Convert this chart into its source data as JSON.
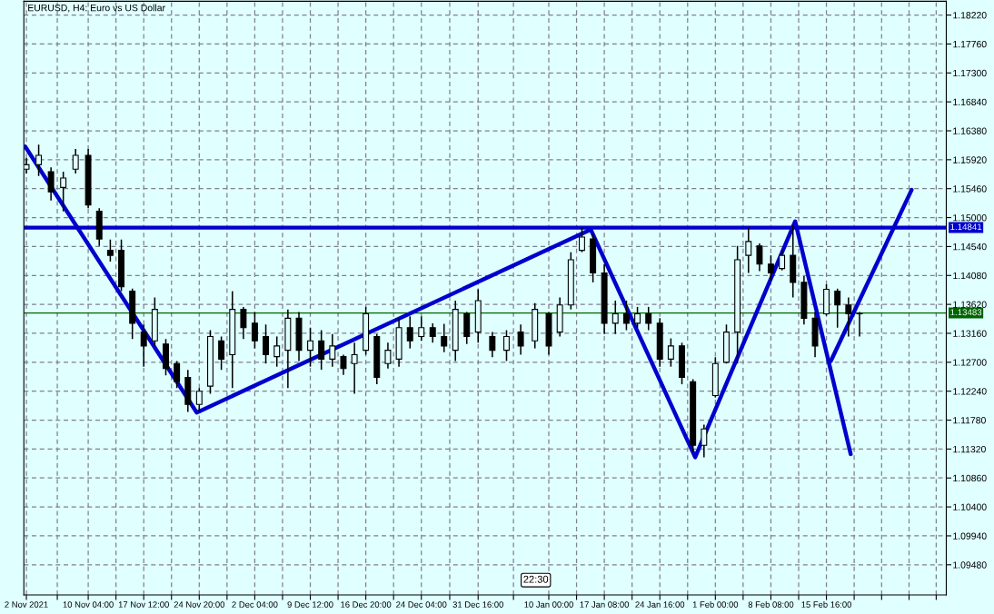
{
  "chart_data": {
    "type": "candlestick",
    "title": "EURUSD, H4: Euro vs US Dollar",
    "x": [
      "2021-11-02T00:00",
      "2021-11-03T15:00",
      "2021-11-05T06:00",
      "2021-11-06T21:00",
      "2021-11-08T12:00",
      "2021-11-10T04:00",
      "2021-11-11T15:00",
      "2021-11-13T02:00",
      "2021-11-14T13:00",
      "2021-11-16T00:00",
      "2021-11-17T12:00",
      "2021-11-18T23:00",
      "2021-11-20T10:00",
      "2021-11-21T21:00",
      "2021-11-23T08:00",
      "2021-11-24T20:00",
      "2021-11-26T07:00",
      "2021-11-27T18:00",
      "2021-11-29T05:00",
      "2021-11-30T16:00",
      "2021-12-02T04:00",
      "2021-12-03T15:00",
      "2021-12-05T02:00",
      "2021-12-06T13:00",
      "2021-12-08T00:00",
      "2021-12-09T12:00",
      "2021-12-10T23:00",
      "2021-12-12T10:00",
      "2021-12-13T21:00",
      "2021-12-15T08:00",
      "2021-12-16T20:00",
      "2021-12-18T07:00",
      "2021-12-19T18:00",
      "2021-12-21T05:00",
      "2021-12-22T16:00",
      "2021-12-24T04:00",
      "2021-12-25T16:00",
      "2021-12-27T04:00",
      "2021-12-28T16:00",
      "2021-12-30T04:00",
      "2021-12-31T16:00",
      "2022-01-02T13:00",
      "2022-01-04T10:00",
      "2022-01-06T07:00",
      "2022-01-08T04:00",
      "2022-01-10T00:00",
      "2022-01-11T11:00",
      "2022-01-12T22:00",
      "2022-01-14T09:00",
      "2022-01-15T20:00",
      "2022-01-17T08:00",
      "2022-01-18T19:00",
      "2022-01-20T06:00",
      "2022-01-21T17:00",
      "2022-01-23T04:00",
      "2022-01-24T16:00",
      "2022-01-26T03:00",
      "2022-01-27T14:00",
      "2022-01-29T01:00",
      "2022-01-30T12:00",
      "2022-02-01T00:00",
      "2022-02-02T11:00",
      "2022-02-03T22:00",
      "2022-02-05T09:00",
      "2022-02-06T20:00",
      "2022-02-08T08:00",
      "2022-02-09T19:00",
      "2022-02-11T06:00",
      "2022-02-12T17:00",
      "2022-02-14T04:00",
      "2022-02-15T16:00",
      "2022-02-17T03:00",
      "2022-02-18T14:00",
      "2022-02-20T01:00"
    ],
    "ohlc": [
      [
        1.1577,
        1.1595,
        1.157,
        1.1584
      ],
      [
        1.1584,
        1.1616,
        1.1566,
        1.1599
      ],
      [
        1.1573,
        1.158,
        1.1527,
        1.1541
      ],
      [
        1.1548,
        1.1573,
        1.151,
        1.1563
      ],
      [
        1.1577,
        1.1609,
        1.157,
        1.1599
      ],
      [
        1.1599,
        1.1609,
        1.1515,
        1.152
      ],
      [
        1.151,
        1.1515,
        1.1455,
        1.1466
      ],
      [
        1.1448,
        1.1465,
        1.143,
        1.144
      ],
      [
        1.1448,
        1.1465,
        1.1383,
        1.139
      ],
      [
        1.1383,
        1.1387,
        1.1307,
        1.1332
      ],
      [
        1.1318,
        1.133,
        1.1263,
        1.1296
      ],
      [
        1.1304,
        1.1373,
        1.1296,
        1.1354
      ],
      [
        1.1299,
        1.1307,
        1.1249,
        1.126
      ],
      [
        1.1268,
        1.1272,
        1.1229,
        1.1239
      ],
      [
        1.1246,
        1.1258,
        1.1191,
        1.1203
      ],
      [
        1.1203,
        1.1229,
        1.1191,
        1.1224
      ],
      [
        1.1232,
        1.1321,
        1.122,
        1.1311
      ],
      [
        1.1304,
        1.1311,
        1.1258,
        1.1275
      ],
      [
        1.1282,
        1.1383,
        1.1229,
        1.1354
      ],
      [
        1.1354,
        1.1358,
        1.1307,
        1.1325
      ],
      [
        1.1332,
        1.135,
        1.1292,
        1.1304
      ],
      [
        1.1311,
        1.133,
        1.1268,
        1.1282
      ],
      [
        1.1279,
        1.1311,
        1.1263,
        1.1296
      ],
      [
        1.1289,
        1.1354,
        1.1229,
        1.134
      ],
      [
        1.134,
        1.135,
        1.1272,
        1.1289
      ],
      [
        1.1289,
        1.1325,
        1.1263,
        1.1304
      ],
      [
        1.1304,
        1.1321,
        1.1258,
        1.1275
      ],
      [
        1.1275,
        1.1315,
        1.1263,
        1.1296
      ],
      [
        1.1279,
        1.1282,
        1.125,
        1.126
      ],
      [
        1.1268,
        1.1301,
        1.122,
        1.1282
      ],
      [
        1.1289,
        1.1358,
        1.1282,
        1.1347
      ],
      [
        1.1311,
        1.1315,
        1.1235,
        1.1246
      ],
      [
        1.1268,
        1.1301,
        1.126,
        1.1289
      ],
      [
        1.1275,
        1.134,
        1.1263,
        1.1325
      ],
      [
        1.1325,
        1.1343,
        1.1292,
        1.1304
      ],
      [
        1.1311,
        1.1343,
        1.1304,
        1.1325
      ],
      [
        1.1325,
        1.1332,
        1.1301,
        1.1311
      ],
      [
        1.1311,
        1.1331,
        1.1286,
        1.1296
      ],
      [
        1.1289,
        1.1368,
        1.1272,
        1.1354
      ],
      [
        1.1347,
        1.135,
        1.1299,
        1.1311
      ],
      [
        1.1318,
        1.1386,
        1.1301,
        1.1368
      ],
      [
        1.1311,
        1.1318,
        1.1278,
        1.1289
      ],
      [
        1.1289,
        1.1321,
        1.1272,
        1.1311
      ],
      [
        1.1318,
        1.133,
        1.1282,
        1.1296
      ],
      [
        1.1304,
        1.1364,
        1.1292,
        1.1354
      ],
      [
        1.1347,
        1.135,
        1.1282,
        1.1296
      ],
      [
        1.1318,
        1.1373,
        1.1311,
        1.1361
      ],
      [
        1.1361,
        1.1445,
        1.1354,
        1.1433
      ],
      [
        1.1448,
        1.1484,
        1.1445,
        1.1469
      ],
      [
        1.1466,
        1.1474,
        1.1397,
        1.1412
      ],
      [
        1.1412,
        1.1426,
        1.1315,
        1.1332
      ],
      [
        1.1332,
        1.1368,
        1.1315,
        1.1347
      ],
      [
        1.1347,
        1.1368,
        1.1321,
        1.1332
      ],
      [
        1.1332,
        1.1358,
        1.1325,
        1.1347
      ],
      [
        1.1347,
        1.1358,
        1.1321,
        1.1332
      ],
      [
        1.1332,
        1.134,
        1.1263,
        1.1275
      ],
      [
        1.1275,
        1.1308,
        1.1263,
        1.1296
      ],
      [
        1.1296,
        1.1301,
        1.1235,
        1.1246
      ],
      [
        1.1239,
        1.1243,
        1.1128,
        1.1138
      ],
      [
        1.1138,
        1.1171,
        1.1119,
        1.1164
      ],
      [
        1.1217,
        1.1278,
        1.1214,
        1.1268
      ],
      [
        1.127,
        1.133,
        1.1268,
        1.1318
      ],
      [
        1.1318,
        1.1455,
        1.1268,
        1.1433
      ],
      [
        1.144,
        1.1484,
        1.1412,
        1.1462
      ],
      [
        1.1455,
        1.1459,
        1.1415,
        1.1426
      ],
      [
        1.1426,
        1.144,
        1.14,
        1.1412
      ],
      [
        1.1419,
        1.1448,
        1.1416,
        1.144
      ],
      [
        1.144,
        1.1488,
        1.1373,
        1.1397
      ],
      [
        1.1397,
        1.1407,
        1.133,
        1.134
      ],
      [
        1.134,
        1.135,
        1.1278,
        1.1296
      ],
      [
        1.1347,
        1.1394,
        1.1344,
        1.1386
      ],
      [
        1.1383,
        1.1387,
        1.1325,
        1.1361
      ],
      [
        1.1361,
        1.1373,
        1.1311,
        1.1347
      ],
      [
        1.1347,
        1.135,
        1.1311,
        1.1348
      ]
    ],
    "color": "#000000",
    "series": [
      {
        "type": "line",
        "color": "#0000cd",
        "x": [
          "2021-11-01T20:00",
          "2021-11-24T12:00",
          "2022-01-15T13:00",
          "2022-01-29T08:00",
          "2022-02-11T13:00",
          "2022-02-18T21:00"
        ],
        "values": [
          1.1613,
          1.119,
          1.1481,
          1.1119,
          1.1494,
          1.1124
        ]
      },
      {
        "type": "line",
        "color": "#0000cd",
        "x": [
          "2022-02-16T06:00",
          "2022-02-26T22:00"
        ],
        "values": [
          1.1272,
          1.1544
        ]
      }
    ],
    "ref_lines": [
      {
        "axis": "y",
        "value": 1.14841,
        "label": "1.14841",
        "color": "#0000cd"
      },
      {
        "axis": "y",
        "value": 1.13483,
        "label": "1.13483",
        "color": "#006400"
      }
    ],
    "xlim": [
      "2021-11-01T16:00",
      "2022-03-03T12:00"
    ],
    "xticks": [
      {
        "value": "2021-11-02T00:00",
        "label": "2 Nov 2021"
      },
      {
        "value": "2021-11-06T02:00",
        "label": null
      },
      {
        "value": "2021-11-10T04:00",
        "label": "10 Nov 04:00"
      },
      {
        "value": "2021-11-13T20:00",
        "label": null
      },
      {
        "value": "2021-11-17T12:00",
        "label": "17 Nov 12:00"
      },
      {
        "value": "2021-11-21T04:00",
        "label": null
      },
      {
        "value": "2021-11-24T20:00",
        "label": "24 Nov 20:00"
      },
      {
        "value": "2021-11-28T12:00",
        "label": null
      },
      {
        "value": "2021-12-02T04:00",
        "label": "2 Dec 04:00"
      },
      {
        "value": "2021-12-05T20:00",
        "label": null
      },
      {
        "value": "2021-12-09T12:00",
        "label": "9 Dec 12:00"
      },
      {
        "value": "2021-12-13T04:00",
        "label": null
      },
      {
        "value": "2021-12-16T20:00",
        "label": "16 Dec 20:00"
      },
      {
        "value": "2021-12-20T12:00",
        "label": null
      },
      {
        "value": "2021-12-24T04:00",
        "label": "24 Dec 04:00"
      },
      {
        "value": "2021-12-27T22:00",
        "label": null
      },
      {
        "value": "2021-12-31T16:00",
        "label": "31 Dec 16:00"
      },
      {
        "value": "2022-01-05T08:00",
        "label": null
      },
      {
        "value": "2022-01-10T00:00",
        "label": "10 Jan 00:00"
      },
      {
        "value": "2022-01-13T16:00",
        "label": null
      },
      {
        "value": "2022-01-17T08:00",
        "label": "17 Jan 08:00"
      },
      {
        "value": "2022-01-21T00:00",
        "label": null
      },
      {
        "value": "2022-01-24T16:00",
        "label": "24 Jan 16:00"
      },
      {
        "value": "2022-01-28T08:00",
        "label": null
      },
      {
        "value": "2022-02-01T00:00",
        "label": "1 Feb 00:00"
      },
      {
        "value": "2022-02-04T16:00",
        "label": null
      },
      {
        "value": "2022-02-08T08:00",
        "label": "8 Feb 08:00"
      },
      {
        "value": "2022-02-12T00:00",
        "label": null
      },
      {
        "value": "2022-02-15T16:00",
        "label": "15 Feb 16:00"
      },
      {
        "value": "2022-02-19T08:00",
        "label": null
      },
      {
        "value": "2022-02-22T23:00",
        "label": null
      },
      {
        "value": "2022-02-26T14:00",
        "label": null
      },
      {
        "value": "2022-03-02T04:00",
        "label": null
      }
    ],
    "ylim": [
      1.09,
      1.1844
    ],
    "yticks": [
      {
        "value": 1.1822,
        "label": "1.18220"
      },
      {
        "value": 1.1776,
        "label": "1.17760"
      },
      {
        "value": 1.173,
        "label": "1.17300"
      },
      {
        "value": 1.1684,
        "label": "1.16840"
      },
      {
        "value": 1.1638,
        "label": "1.16380"
      },
      {
        "value": 1.1592,
        "label": "1.15920"
      },
      {
        "value": 1.1546,
        "label": "1.15460"
      },
      {
        "value": 1.15,
        "label": "1.15000"
      },
      {
        "value": 1.1454,
        "label": "1.14540"
      },
      {
        "value": 1.1408,
        "label": "1.14080"
      },
      {
        "value": 1.1362,
        "label": "1.13620"
      },
      {
        "value": 1.1316,
        "label": "1.13160"
      },
      {
        "value": 1.127,
        "label": "1.12700"
      },
      {
        "value": 1.1224,
        "label": "1.12240"
      },
      {
        "value": 1.1178,
        "label": "1.11780"
      },
      {
        "value": 1.1132,
        "label": "1.11320"
      },
      {
        "value": 1.1086,
        "label": "1.10860"
      },
      {
        "value": 1.104,
        "label": "1.10400"
      },
      {
        "value": 1.0994,
        "label": "1.09940"
      },
      {
        "value": 1.0948,
        "label": "1.09480"
      }
    ],
    "grid": true,
    "annotations": [
      "22:30"
    ]
  }
}
